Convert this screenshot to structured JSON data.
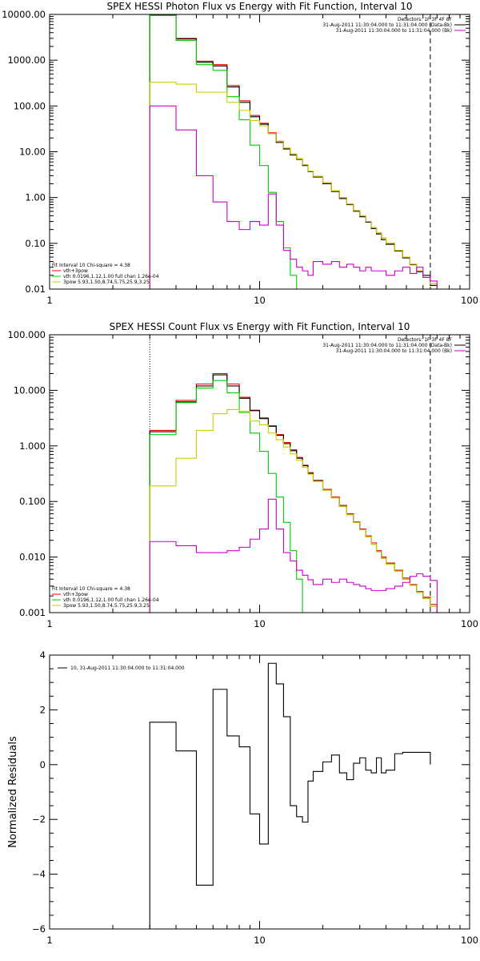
{
  "chart_data": [
    {
      "type": "line",
      "title": "SPEX HESSI Photon Flux vs Energy with Fit Function, Interval 10",
      "xscale": "log",
      "yscale": "log",
      "xlim": [
        1,
        100
      ],
      "ylim": [
        0.01,
        10000
      ],
      "xticks": [
        {
          "v": 1,
          "l": "1"
        },
        {
          "v": 10,
          "l": "10"
        },
        {
          "v": 100,
          "l": "100"
        }
      ],
      "yticks": [
        {
          "v": 0.01,
          "l": "0.01"
        },
        {
          "v": 0.1,
          "l": "0.10"
        },
        {
          "v": 1,
          "l": "1.00"
        },
        {
          "v": 10,
          "l": "10.00"
        },
        {
          "v": 100,
          "l": "100.00"
        },
        {
          "v": 1000,
          "l": "1000.00"
        },
        {
          "v": 10000,
          "l": "10000.00"
        }
      ],
      "vlines": [
        {
          "x": 3,
          "style": "dotted",
          "color": "#000000"
        },
        {
          "x": 65,
          "style": "dashed",
          "color": "#000000"
        }
      ],
      "legend_tr": [
        {
          "text": "Detectors: 1F 3F 4F 8F",
          "color": "#000000"
        },
        {
          "text": "31-Aug-2011 11:30:04.000 to 11:31:04.000 (Data-Bk)",
          "color": "#000000"
        },
        {
          "text": "31-Aug-2011 11:30:04.000 to 11:31:04.000 (Bk)",
          "color": "#cc00cc"
        }
      ],
      "legend_bl": [
        {
          "text": "Fit Interval 10   Chi-square = 4.38",
          "color": "#000000"
        },
        {
          "text": "vth+3pow",
          "color": "#ee0000"
        },
        {
          "text": "vth 0.0196,1.12,1.00  full chan 1.26e-04",
          "color": "#00cc00"
        },
        {
          "text": "3pow 5.93,1.50,8.74,5.75,25.9,3.25",
          "color": "#cccc00"
        }
      ],
      "x_edges": [
        3,
        4,
        5,
        6,
        7,
        8,
        9,
        10,
        11,
        12,
        13,
        14,
        15,
        16,
        17,
        18,
        20,
        22,
        24,
        26,
        28,
        30,
        32,
        34,
        36,
        38,
        40,
        44,
        48,
        52,
        56,
        60,
        65,
        70,
        75
      ],
      "series": [
        {
          "name": "vth+3pow",
          "color": "#ee0000",
          "values": [
            9800,
            3000,
            950,
            800,
            280,
            130,
            62,
            42,
            26,
            17,
            12,
            9,
            7,
            5.2,
            3.8,
            2.9,
            2.1,
            1.4,
            1.0,
            0.72,
            0.52,
            0.4,
            0.3,
            0.22,
            0.17,
            0.13,
            0.1,
            0.07,
            0.05,
            0.035,
            0.025,
            0.018,
            0.013,
            0.01
          ]
        },
        {
          "color": "#000000",
          "values": [
            9600,
            2900,
            900,
            750,
            260,
            120,
            58,
            40,
            25,
            16,
            11.5,
            8.5,
            6.8,
            5,
            3.7,
            2.8,
            2.0,
            1.35,
            0.95,
            0.7,
            0.5,
            0.38,
            0.29,
            0.21,
            0.16,
            0.12,
            0.095,
            0.068,
            0.048,
            0.034,
            0.024,
            0.02,
            0.012,
            null
          ]
        },
        {
          "name": "vth 0.0196,1.12,1.00  full chan 1.26e-04",
          "color": "#00cc00",
          "values": [
            9500,
            2700,
            800,
            600,
            160,
            50,
            14,
            5,
            1.3,
            0.3,
            0.08,
            0.02,
            0.006,
            null,
            null,
            null,
            null,
            null,
            null,
            null,
            null,
            null,
            null,
            null,
            null,
            null,
            null,
            null,
            null,
            null,
            null,
            null,
            null,
            null
          ]
        },
        {
          "name": "3pow 5.93,1.50,8.74,5.75,25.9,3.25",
          "color": "#cccc00",
          "values": [
            330,
            300,
            200,
            200,
            120,
            80,
            48,
            37,
            25,
            17,
            12,
            9,
            7,
            5.2,
            3.8,
            2.9,
            2.1,
            1.4,
            1.0,
            0.72,
            0.52,
            0.4,
            0.3,
            0.22,
            0.17,
            0.13,
            0.1,
            0.07,
            0.05,
            0.035,
            0.025,
            0.018,
            0.013,
            0.01
          ]
        },
        {
          "color": "#cc00cc",
          "values": [
            100,
            30,
            3,
            0.8,
            0.3,
            0.2,
            0.3,
            0.25,
            1.2,
            0.25,
            0.07,
            0.045,
            0.03,
            0.025,
            0.02,
            0.04,
            0.035,
            0.04,
            0.03,
            0.035,
            0.03,
            0.025,
            0.03,
            0.025,
            0.025,
            0.025,
            0.02,
            0.025,
            0.03,
            0.022,
            0.03,
            0.018,
            0.015,
            null
          ]
        }
      ]
    },
    {
      "type": "line",
      "title": "SPEX HESSI Count Flux vs Energy with Fit Function, Interval 10",
      "xscale": "log",
      "yscale": "log",
      "xlim": [
        1,
        100
      ],
      "ylim": [
        0.001,
        100
      ],
      "xticks": [
        {
          "v": 1,
          "l": "1"
        },
        {
          "v": 10,
          "l": "10"
        },
        {
          "v": 100,
          "l": "100"
        }
      ],
      "yticks": [
        {
          "v": 0.001,
          "l": "0.001"
        },
        {
          "v": 0.01,
          "l": "0.010"
        },
        {
          "v": 0.1,
          "l": "0.100"
        },
        {
          "v": 1,
          "l": "1.000"
        },
        {
          "v": 10,
          "l": "10.000"
        },
        {
          "v": 100,
          "l": "100.000"
        }
      ],
      "vlines": [
        {
          "x": 3,
          "style": "dotted",
          "color": "#000000"
        },
        {
          "x": 65,
          "style": "dashed",
          "color": "#000000"
        }
      ],
      "legend_tr": [
        {
          "text": "Detectors: 1F 3F 4F 8F",
          "color": "#000000"
        },
        {
          "text": "31-Aug-2011 11:30:04.000 to 11:31:04.000 (Data-Bk)",
          "color": "#000000"
        },
        {
          "text": "31-Aug-2011 11:30:04.000 to 11:31:04.000 (Bk)",
          "color": "#cc00cc"
        }
      ],
      "legend_bl": [
        {
          "text": "Fit Interval 10   Chi-square = 4.38",
          "color": "#000000"
        },
        {
          "text": "vth+3pow",
          "color": "#ee0000"
        },
        {
          "text": "vth 0.0196,1.12,1.00  full chan 1.26e-04",
          "color": "#00cc00"
        },
        {
          "text": "3pow 5.93,1.50,8.74,5.75,25.9,3.25",
          "color": "#cccc00"
        }
      ],
      "x_edges": [
        3,
        4,
        5,
        6,
        7,
        8,
        9,
        10,
        11,
        12,
        13,
        14,
        15,
        16,
        17,
        18,
        20,
        22,
        24,
        26,
        28,
        30,
        32,
        34,
        36,
        38,
        40,
        44,
        48,
        52,
        56,
        60,
        65,
        70,
        75
      ],
      "series": [
        {
          "name": "vth+3pow",
          "color": "#ee0000",
          "values": [
            1.9,
            6.6,
            13,
            20,
            13,
            7.5,
            4.4,
            3.2,
            2.3,
            1.6,
            1.15,
            0.85,
            0.62,
            0.45,
            0.33,
            0.24,
            0.165,
            0.12,
            0.085,
            0.06,
            0.043,
            0.032,
            0.024,
            0.018,
            0.013,
            0.01,
            0.0078,
            0.0058,
            0.0042,
            0.0032,
            0.0024,
            0.0019,
            0.0014,
            0.001
          ]
        },
        {
          "color": "#000000",
          "values": [
            1.8,
            6.2,
            12,
            19,
            12,
            7.2,
            4.3,
            3.1,
            2.25,
            1.55,
            1.1,
            0.82,
            0.6,
            0.44,
            0.32,
            0.235,
            0.16,
            0.115,
            0.082,
            0.058,
            0.042,
            0.031,
            0.023,
            0.017,
            0.0125,
            0.0095,
            0.0075,
            0.0056,
            0.004,
            0.0031,
            0.0023,
            0.0018,
            0.0013,
            null
          ]
        },
        {
          "name": "vth 0.0196,1.12,1.00  full chan 1.26e-04",
          "color": "#00cc00",
          "values": [
            1.6,
            6.0,
            11,
            15,
            9,
            4.0,
            1.7,
            0.8,
            0.32,
            0.12,
            0.042,
            0.013,
            0.004,
            0.0009,
            null,
            null,
            null,
            null,
            null,
            null,
            null,
            null,
            null,
            null,
            null,
            null,
            null,
            null,
            null,
            null,
            null,
            null,
            null,
            null
          ]
        },
        {
          "name": "3pow 5.93,1.50,8.74,5.75,25.9,3.25",
          "color": "#cccc00",
          "values": [
            0.19,
            0.6,
            1.9,
            3.8,
            4.5,
            4.2,
            2.8,
            2.4,
            1.7,
            1.3,
            0.95,
            0.72,
            0.55,
            0.41,
            0.31,
            0.23,
            0.16,
            0.115,
            0.082,
            0.058,
            0.042,
            0.031,
            0.023,
            0.017,
            0.0125,
            0.0095,
            0.0075,
            0.0056,
            0.004,
            0.0031,
            0.0023,
            0.0018,
            0.0013,
            0.0009
          ]
        },
        {
          "color": "#cc00cc",
          "values": [
            0.019,
            0.016,
            0.012,
            0.012,
            0.013,
            0.015,
            0.021,
            0.032,
            0.11,
            0.032,
            0.012,
            0.0085,
            0.0058,
            0.0047,
            0.0039,
            0.0032,
            0.004,
            0.0035,
            0.004,
            0.0035,
            0.0032,
            0.003,
            0.0027,
            0.0025,
            0.0025,
            0.0025,
            0.0027,
            0.003,
            0.0035,
            0.0045,
            0.005,
            0.0045,
            0.0038,
            null
          ]
        }
      ]
    },
    {
      "type": "line",
      "title": "",
      "xscale": "log",
      "yscale": "linear",
      "xlim": [
        1,
        100
      ],
      "ylim": [
        -6,
        4
      ],
      "ylabel": "Normalized Residuals",
      "xticks": [
        {
          "v": 1,
          "l": "1"
        },
        {
          "v": 10,
          "l": "10"
        },
        {
          "v": 100,
          "l": "100"
        }
      ],
      "yticks": [
        {
          "v": -6,
          "l": "−6"
        },
        {
          "v": -4,
          "l": "−4"
        },
        {
          "v": -2,
          "l": "−2"
        },
        {
          "v": 0,
          "l": "0"
        },
        {
          "v": 2,
          "l": "2"
        },
        {
          "v": 4,
          "l": "4"
        }
      ],
      "legend_tl": [
        {
          "text": "10, 31-Aug-2011 11:30:04.000 to 11:31:04.000",
          "color": "#000000"
        }
      ],
      "x_edges": [
        3,
        4,
        5,
        6,
        7,
        8,
        9,
        10,
        11,
        12,
        13,
        14,
        15,
        16,
        17,
        18,
        20,
        22,
        24,
        26,
        28,
        30,
        32,
        34,
        36,
        38,
        40,
        44,
        48,
        52,
        56,
        60,
        65
      ],
      "series": [
        {
          "color": "#000000",
          "values": [
            1.55,
            0.5,
            -4.4,
            2.75,
            1.05,
            0.65,
            -1.8,
            -2.9,
            3.7,
            2.95,
            1.75,
            -1.5,
            -1.9,
            -2.1,
            -0.6,
            -0.25,
            0.1,
            0.35,
            -0.3,
            -0.55,
            0.05,
            0.25,
            -0.2,
            -0.3,
            0.25,
            -0.3,
            -0.2,
            0.4,
            0.45,
            0.45,
            0.45,
            0.45
          ]
        }
      ]
    }
  ]
}
